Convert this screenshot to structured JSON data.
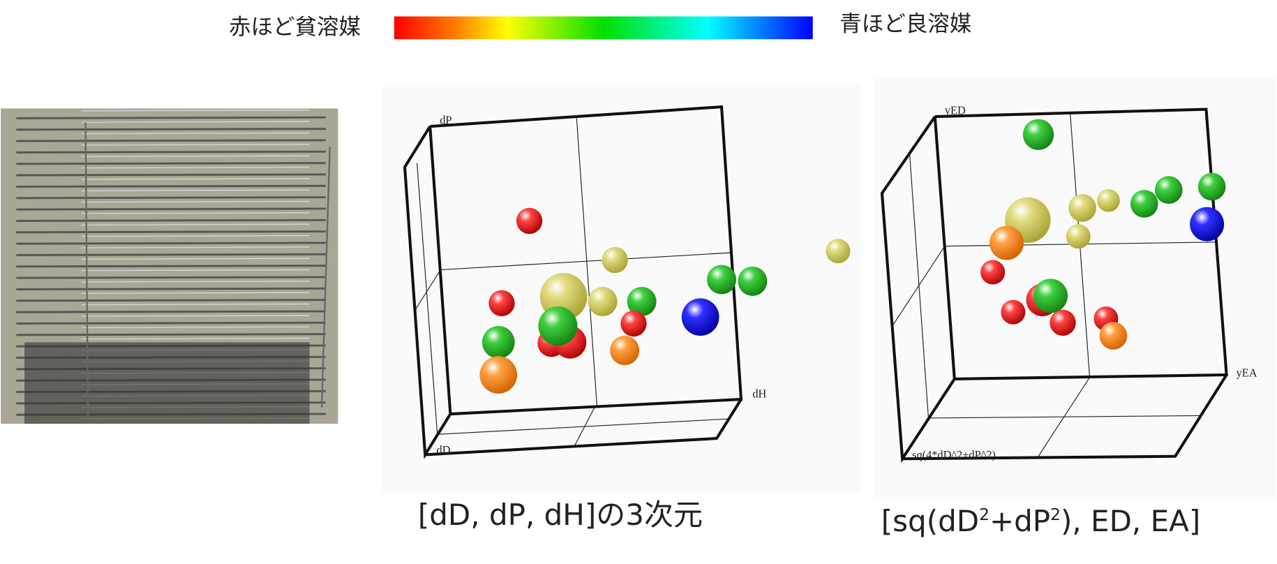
{
  "legend": {
    "left": "赤ほど貧溶媒",
    "right": "青ほど良溶媒"
  },
  "plot1": {
    "axis_dp": "dP",
    "axis_dd": "dD",
    "axis_dh": "dH",
    "caption": "[dD, dP, dH]の3次元"
  },
  "plot2": {
    "axis_yed": "yED",
    "axis_yea": "yEA",
    "axis_sq": "sq(4*dD^2+dP^2)",
    "caption": [
      "[sq(dD",
      "2",
      "+dP",
      "2",
      "), ED, EA]"
    ]
  }
}
